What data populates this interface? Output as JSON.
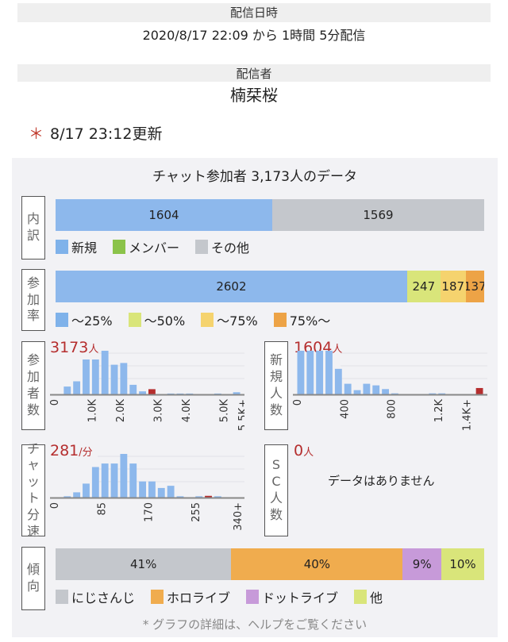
{
  "header": {
    "date_label": "配信日時",
    "date_value": "2020/8/17 22:09 から 1時間 5分配信",
    "streamer_label": "配信者",
    "streamer_value": "楠栞桜"
  },
  "update": {
    "star": "＊",
    "text": "8/17 23:12更新"
  },
  "panel": {
    "title": "チャット参加者 3,173人のデータ",
    "footnote": "* グラフの詳細は、ヘルプをご覧ください"
  },
  "breakdown": {
    "label": "内訳",
    "segments": [
      {
        "name": "新規",
        "value": 1604,
        "color": "#8db8ec"
      },
      {
        "name": "メンバー",
        "value": 0,
        "color": "#8bc34a"
      },
      {
        "name": "その他",
        "value": 1569,
        "color": "#c4c7cc"
      }
    ],
    "legend": [
      {
        "label": "新規",
        "color": "#7fb2ea"
      },
      {
        "label": "メンバー",
        "color": "#8bc34a"
      },
      {
        "label": "その他",
        "color": "#c4c7cc"
      }
    ]
  },
  "participation": {
    "label": "参加率",
    "segments": [
      {
        "name": "～25%",
        "value": 2602,
        "color": "#8db8ec"
      },
      {
        "name": "～50%",
        "value": 247,
        "color": "#d9e57a"
      },
      {
        "name": "～75%",
        "value": 187,
        "color": "#f5d36e"
      },
      {
        "name": "75%～",
        "value": 137,
        "color": "#eda346"
      }
    ],
    "legend": [
      {
        "label": "～25%",
        "color": "#7fb2ea"
      },
      {
        "label": "～50%",
        "color": "#d9e57a"
      },
      {
        "label": "～75%",
        "color": "#f5d36e"
      },
      {
        "label": "75%～",
        "color": "#eda346"
      }
    ]
  },
  "histograms": {
    "participants": {
      "label": "参加者数",
      "big_value": "3173",
      "big_unit": "人",
      "ticks": [
        "0",
        "1.0K",
        "2.0K",
        "3.0K",
        "4.0K",
        "5.0K",
        "5.5K+"
      ],
      "tick_positions": [
        0,
        4,
        7,
        11,
        14,
        18,
        20
      ],
      "highlight_index": 10,
      "bins": [
        0,
        18,
        30,
        80,
        80,
        100,
        68,
        72,
        22,
        7,
        12,
        0,
        2,
        2,
        2,
        0,
        0,
        2,
        0,
        5
      ]
    },
    "new": {
      "label": "新規人数",
      "big_value": "1604",
      "big_unit": "人",
      "ticks": [
        "0",
        "400",
        "800",
        "1.2K",
        "1.4K+"
      ],
      "tick_positions": [
        0,
        5,
        10,
        15,
        18
      ],
      "highlight_index": 19,
      "bins": [
        82,
        82,
        82,
        82,
        48,
        20,
        8,
        20,
        17,
        10,
        2,
        0,
        0,
        0,
        2,
        2,
        0,
        0,
        0,
        12
      ]
    },
    "speed": {
      "label": "チャット分速",
      "big_value": "281",
      "big_unit": "/分",
      "ticks": [
        "0",
        "85",
        "170",
        "255",
        "340+"
      ],
      "tick_positions": [
        0,
        5,
        10,
        15,
        19.5
      ],
      "highlight_index": 16,
      "bins": [
        0,
        3,
        12,
        32,
        70,
        78,
        78,
        100,
        78,
        37,
        37,
        22,
        27,
        3,
        0,
        3,
        4,
        3,
        0,
        0
      ]
    },
    "sc": {
      "label": "SC人数",
      "big_value": "0",
      "big_unit": "人",
      "no_data": "データはありません"
    }
  },
  "tendency": {
    "label": "傾向",
    "segments": [
      {
        "name": "にじさんじ",
        "value": 41,
        "display": "41%",
        "color": "#c4c7cc"
      },
      {
        "name": "ホロライブ",
        "value": 40,
        "display": "40%",
        "color": "#f0ac4e"
      },
      {
        "name": "ドットライブ",
        "value": 9,
        "display": "9%",
        "color": "#c79ad9"
      },
      {
        "name": "他",
        "value": 10,
        "display": "10%",
        "color": "#d9e57a"
      }
    ],
    "legend": [
      {
        "label": "にじさんじ",
        "color": "#c4c7cc"
      },
      {
        "label": "ホロライブ",
        "color": "#f0ac4e"
      },
      {
        "label": "ドットライブ",
        "color": "#c79ad9"
      },
      {
        "label": "他",
        "color": "#d9e57a"
      }
    ]
  },
  "colors": {
    "bar": "#8db8ec",
    "highlight": "#b52e2e",
    "accent_red": "#b52e2e"
  }
}
